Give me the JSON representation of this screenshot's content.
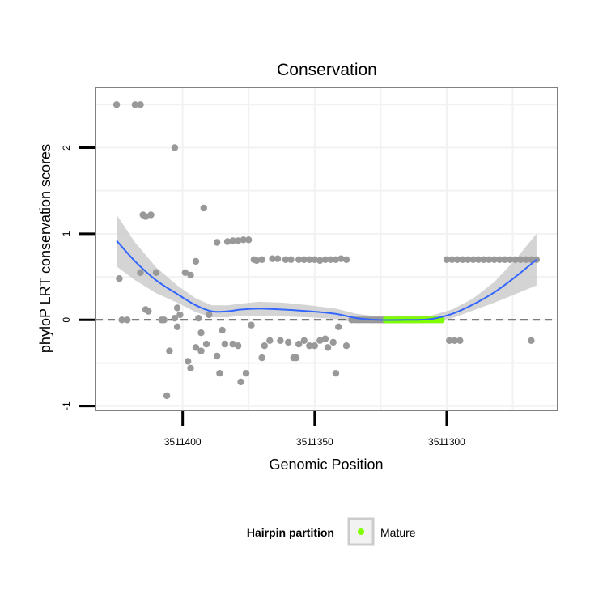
{
  "chart_data": {
    "type": "scatter",
    "title": "Conservation",
    "xlabel": "Genomic Position",
    "ylabel": "phyloP LRT conservation scores",
    "x_reversed": true,
    "xlim": [
      3511433,
      3511258
    ],
    "ylim": [
      -1.05,
      2.7
    ],
    "x_ticks": [
      3511400,
      3511350,
      3511300
    ],
    "x_tick_labels": [
      "3511400",
      "3511350",
      "3511300"
    ],
    "y_ticks": [
      -1,
      0,
      1,
      2
    ],
    "y_tick_labels": [
      "-1",
      "0",
      "1",
      "2"
    ],
    "reference_line_y": 0,
    "legend": {
      "title": "Hairpin partition",
      "entries": [
        {
          "label": "Mature",
          "color": "#7fff00"
        }
      ],
      "position": "bottom"
    },
    "colors": {
      "points": "#999999",
      "mature": "#7fff00",
      "smooth": "#3366ff",
      "ribbon": "#cccccc",
      "grid": "#f2f2f2",
      "panel_border": "#808080"
    },
    "series": [
      {
        "name": "Scores",
        "points": [
          [
            3511425,
            2.5
          ],
          [
            3511418,
            2.5
          ],
          [
            3511416,
            2.5
          ],
          [
            3511403,
            2.0
          ],
          [
            3511412,
            1.22
          ],
          [
            3511415,
            1.22
          ],
          [
            3511414,
            1.2
          ],
          [
            3511392,
            1.3
          ],
          [
            3511410,
            0.55
          ],
          [
            3511416,
            0.55
          ],
          [
            3511424,
            0.48
          ],
          [
            3511414,
            0.12
          ],
          [
            3511413,
            0.1
          ],
          [
            3511421,
            0.0
          ],
          [
            3511423,
            0.0
          ],
          [
            3511408,
            0.0
          ],
          [
            3511407,
            0.0
          ],
          [
            3511403,
            0.02
          ],
          [
            3511401,
            0.06
          ],
          [
            3511402,
            0.14
          ],
          [
            3511399,
            0.55
          ],
          [
            3511397,
            0.52
          ],
          [
            3511395,
            0.68
          ],
          [
            3511394,
            0.02
          ],
          [
            3511390,
            0.06
          ],
          [
            3511405,
            -0.36
          ],
          [
            3511402,
            -0.08
          ],
          [
            3511395,
            -0.32
          ],
          [
            3511398,
            -0.48
          ],
          [
            3511397,
            -0.56
          ],
          [
            3511406,
            -0.88
          ],
          [
            3511393,
            -0.15
          ],
          [
            3511391,
            -0.28
          ],
          [
            3511393,
            -0.36
          ],
          [
            3511387,
            -0.42
          ],
          [
            3511386,
            -0.62
          ],
          [
            3511385,
            -0.12
          ],
          [
            3511384,
            -0.28
          ],
          [
            3511381,
            -0.28
          ],
          [
            3511379,
            -0.3
          ],
          [
            3511378,
            -0.72
          ],
          [
            3511376,
            -0.62
          ],
          [
            3511374,
            -0.06
          ],
          [
            3511387,
            0.9
          ],
          [
            3511383,
            0.91
          ],
          [
            3511381,
            0.92
          ],
          [
            3511379,
            0.92
          ],
          [
            3511377,
            0.93
          ],
          [
            3511375,
            0.93
          ],
          [
            3511373,
            0.7
          ],
          [
            3511370,
            0.7
          ],
          [
            3511372,
            0.69
          ],
          [
            3511366,
            0.71
          ],
          [
            3511364,
            0.71
          ],
          [
            3511361,
            0.7
          ],
          [
            3511359,
            0.7
          ],
          [
            3511356,
            0.7
          ],
          [
            3511354,
            0.7
          ],
          [
            3511352,
            0.7
          ],
          [
            3511350,
            0.7
          ],
          [
            3511348,
            0.69
          ],
          [
            3511346,
            0.7
          ],
          [
            3511344,
            0.7
          ],
          [
            3511342,
            0.7
          ],
          [
            3511340,
            0.71
          ],
          [
            3511338,
            0.7
          ],
          [
            3511370,
            -0.44
          ],
          [
            3511369,
            -0.3
          ],
          [
            3511367,
            -0.24
          ],
          [
            3511363,
            -0.24
          ],
          [
            3511360,
            -0.26
          ],
          [
            3511358,
            -0.44
          ],
          [
            3511357,
            -0.44
          ],
          [
            3511356,
            -0.28
          ],
          [
            3511354,
            -0.24
          ],
          [
            3511352,
            -0.3
          ],
          [
            3511350,
            -0.3
          ],
          [
            3511348,
            -0.24
          ],
          [
            3511346,
            -0.22
          ],
          [
            3511345,
            -0.32
          ],
          [
            3511343,
            -0.26
          ],
          [
            3511342,
            -0.62
          ],
          [
            3511341,
            -0.08
          ],
          [
            3511338,
            -0.3
          ],
          [
            3511300,
            0.7
          ],
          [
            3511298,
            0.7
          ],
          [
            3511296,
            0.7
          ],
          [
            3511294,
            0.7
          ],
          [
            3511292,
            0.7
          ],
          [
            3511290,
            0.7
          ],
          [
            3511288,
            0.7
          ],
          [
            3511286,
            0.7
          ],
          [
            3511284,
            0.7
          ],
          [
            3511282,
            0.7
          ],
          [
            3511280,
            0.7
          ],
          [
            3511278,
            0.7
          ],
          [
            3511276,
            0.7
          ],
          [
            3511274,
            0.7
          ],
          [
            3511272,
            0.7
          ],
          [
            3511270,
            0.7
          ],
          [
            3511268,
            0.7
          ],
          [
            3511266,
            0.7
          ],
          [
            3511299,
            -0.24
          ],
          [
            3511297,
            -0.24
          ],
          [
            3511295,
            -0.24
          ],
          [
            3511268,
            -0.24
          ]
        ],
        "flat_segment": {
          "x_from": 3511336,
          "x_to": 3511302,
          "step": 1,
          "y": 0.0
        }
      },
      {
        "name": "Mature",
        "x_from": 3511323,
        "x_to": 3511302,
        "y": 0.0
      }
    ],
    "smooth": {
      "method": "loess",
      "x": [
        3511425,
        3511418,
        3511410,
        3511402,
        3511395,
        3511389,
        3511383,
        3511378,
        3511371,
        3511362,
        3511352,
        3511342,
        3511334,
        3511326,
        3511316,
        3511306,
        3511298,
        3511290,
        3511282,
        3511274,
        3511266
      ],
      "y": [
        0.92,
        0.68,
        0.46,
        0.3,
        0.17,
        0.1,
        0.1,
        0.12,
        0.13,
        0.12,
        0.1,
        0.07,
        0.02,
        0.0,
        0.0,
        0.01,
        0.07,
        0.18,
        0.32,
        0.5,
        0.7
      ],
      "se": [
        0.3,
        0.22,
        0.15,
        0.1,
        0.08,
        0.07,
        0.07,
        0.07,
        0.08,
        0.08,
        0.07,
        0.06,
        0.05,
        0.04,
        0.04,
        0.04,
        0.05,
        0.07,
        0.12,
        0.2,
        0.3
      ]
    }
  }
}
